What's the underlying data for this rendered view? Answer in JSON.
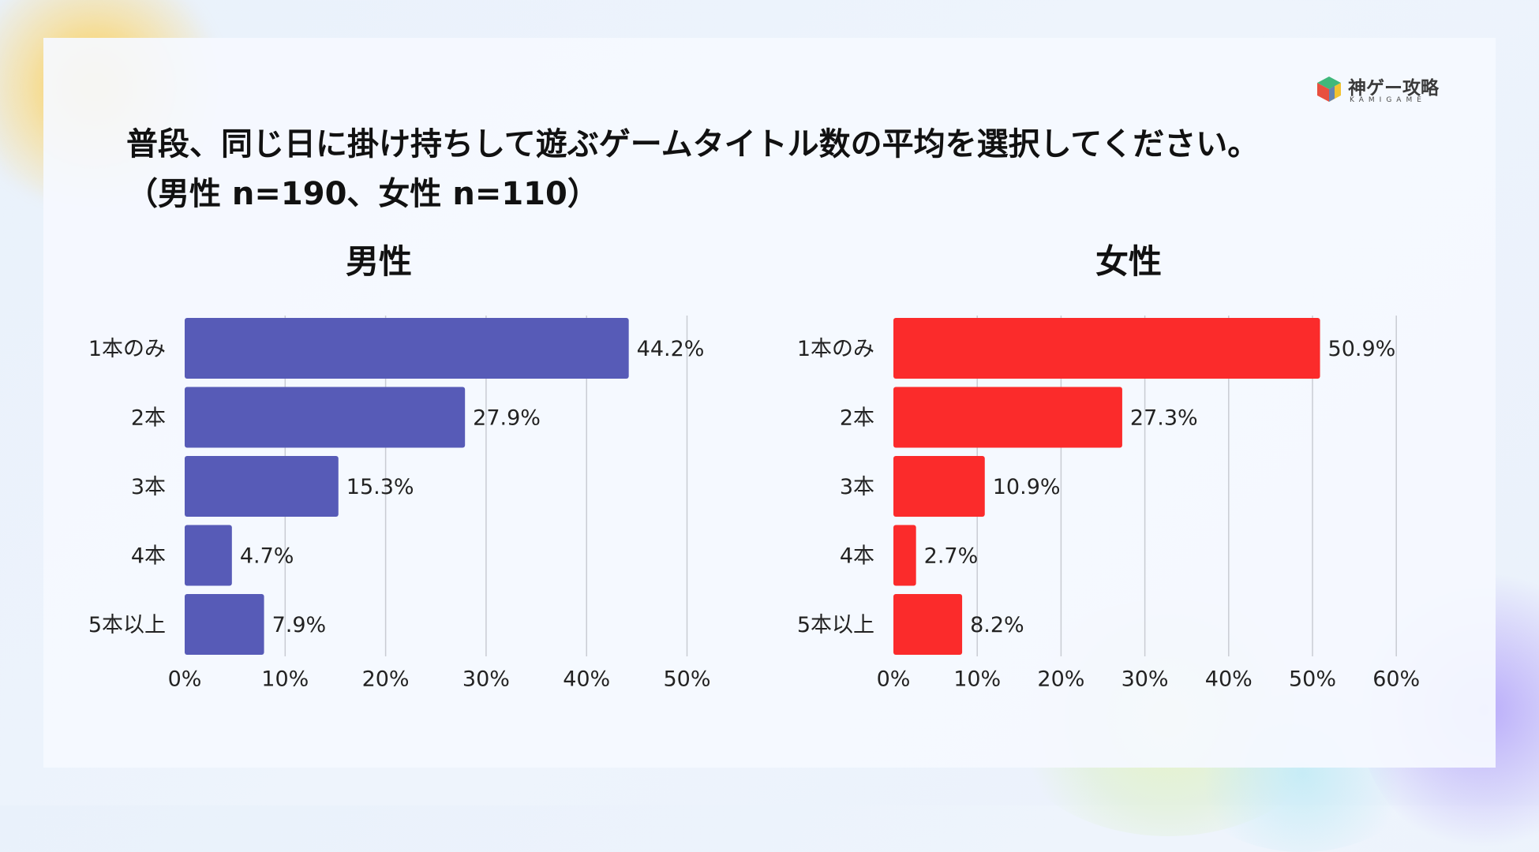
{
  "header": {
    "title": "普段、同じ日に掛け持ちして遊ぶゲームタイトル数の平均を選択してください。",
    "subtitle": "（男性 n=190、女性 n=110）"
  },
  "logo": {
    "name": "神ゲー攻略",
    "sub": "KAMIGAME"
  },
  "chart_data": [
    {
      "type": "bar",
      "orientation": "horizontal",
      "title": "男性",
      "categories": [
        "1本のみ",
        "2本",
        "3本",
        "4本",
        "5本以上"
      ],
      "values": [
        44.2,
        27.9,
        15.3,
        4.7,
        7.9
      ],
      "value_labels": [
        "44.2%",
        "27.9%",
        "15.3%",
        "4.7%",
        "7.9%"
      ],
      "xlim": [
        0,
        50
      ],
      "ticks": [
        "0%",
        "10%",
        "20%",
        "30%",
        "40%",
        "50%"
      ],
      "grid": true,
      "color": "#575bb7"
    },
    {
      "type": "bar",
      "orientation": "horizontal",
      "title": "女性",
      "categories": [
        "1本のみ",
        "2本",
        "3本",
        "4本",
        "5本以上"
      ],
      "values": [
        50.9,
        27.3,
        10.9,
        2.7,
        8.2
      ],
      "value_labels": [
        "50.9%",
        "27.3%",
        "10.9%",
        "2.7%",
        "8.2%"
      ],
      "xlim": [
        0,
        60
      ],
      "ticks": [
        "0%",
        "10%",
        "20%",
        "30%",
        "40%",
        "50%",
        "60%"
      ],
      "grid": true,
      "color": "#fb2b2b"
    }
  ]
}
